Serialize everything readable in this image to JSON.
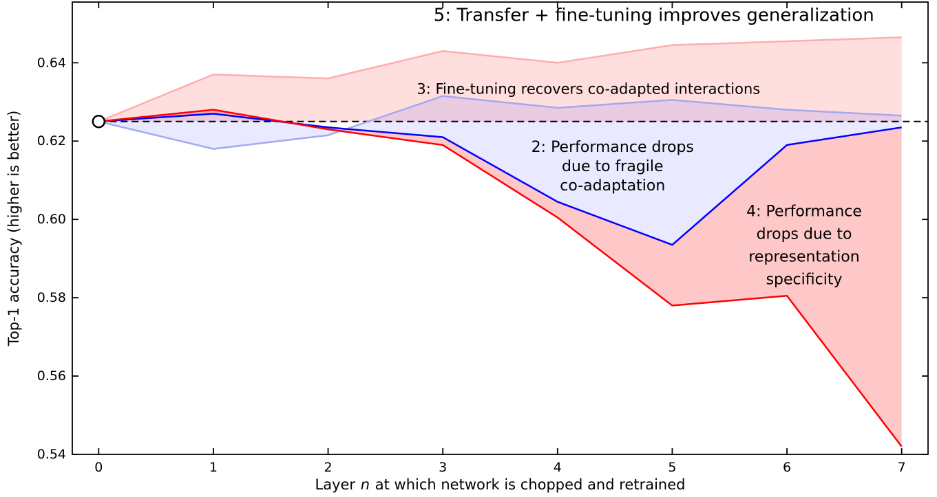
{
  "chart_data": {
    "type": "line",
    "title": "",
    "xlabel_prefix": "Layer ",
    "xlabel_var": "n",
    "xlabel_suffix": " at which network is chopped and retrained",
    "ylabel": "Top-1 accuracy (higher is better)",
    "xlim": [
      -0.23,
      7.23
    ],
    "ylim": [
      0.54,
      0.6555
    ],
    "xticks": [
      0,
      1,
      2,
      3,
      4,
      5,
      6,
      7
    ],
    "yticks": [
      0.54,
      0.56,
      0.58,
      0.6,
      0.62,
      0.64
    ],
    "grid": false,
    "legend": "none",
    "baseline": 0.625,
    "baseline_style": {
      "color": "#000000",
      "dash": "10 6",
      "width": 2
    },
    "marker": {
      "x": 0,
      "y": 0.625,
      "shape": "circle",
      "fill": "#ffffff",
      "edge": "#000000"
    },
    "x": [
      0,
      1,
      2,
      3,
      4,
      5,
      6,
      7
    ],
    "series": [
      {
        "name": "transfer-and-finetune",
        "color": "#ffadad",
        "width": 2.5,
        "values": [
          0.625,
          0.637,
          0.636,
          0.643,
          0.64,
          0.6445,
          0.6455,
          0.6465
        ]
      },
      {
        "name": "finetune-recovers",
        "color": "#a3a8f0",
        "width": 2.5,
        "values": [
          0.625,
          0.618,
          0.6215,
          0.6315,
          0.6285,
          0.6305,
          0.628,
          0.6265
        ]
      },
      {
        "name": "fragile-coadaptation",
        "color": "#0000ff",
        "width": 2.5,
        "values": [
          0.625,
          0.627,
          0.6235,
          0.621,
          0.6045,
          0.5935,
          0.619,
          0.6235
        ]
      },
      {
        "name": "representation-specificity",
        "color": "#ff0000",
        "width": 2.5,
        "values": [
          0.625,
          0.628,
          0.623,
          0.619,
          0.6005,
          0.578,
          0.5805,
          0.542
        ]
      }
    ],
    "fills": [
      {
        "name": "transfer-gain-region",
        "between": [
          "transfer-and-finetune",
          "baseline"
        ],
        "color": "rgba(255,70,70,0.18)"
      },
      {
        "name": "coadaptation-drop-region",
        "between": [
          "finetune-recovers",
          "fragile-coadaptation"
        ],
        "color": "rgba(70,70,255,0.12)"
      },
      {
        "name": "specificity-drop-region",
        "between": [
          "fragile-coadaptation",
          "representation-specificity"
        ],
        "color": "rgba(255,50,50,0.27)"
      }
    ],
    "annotations": [
      {
        "name": "annotation-5",
        "x": 4.84,
        "y": 0.6507,
        "size": 26,
        "line_height": 30,
        "lines": [
          "5: Transfer + fine-tuning improves generalization"
        ]
      },
      {
        "name": "annotation-3",
        "x": 4.27,
        "y": 0.6321,
        "size": 21,
        "line_height": 28,
        "lines": [
          "3: Fine-tuning recovers co-adapted interactions"
        ]
      },
      {
        "name": "annotation-2",
        "x": 4.48,
        "y": 0.6172,
        "size": 22,
        "line_height": 28,
        "lines": [
          "2: Performance drops",
          "due to fragile",
          "co-adaptation"
        ]
      },
      {
        "name": "annotation-4",
        "x": 6.15,
        "y": 0.6008,
        "size": 22,
        "line_height": 33,
        "lines": [
          "4: Performance",
          "drops due to",
          "representation",
          "specificity"
        ]
      }
    ]
  }
}
